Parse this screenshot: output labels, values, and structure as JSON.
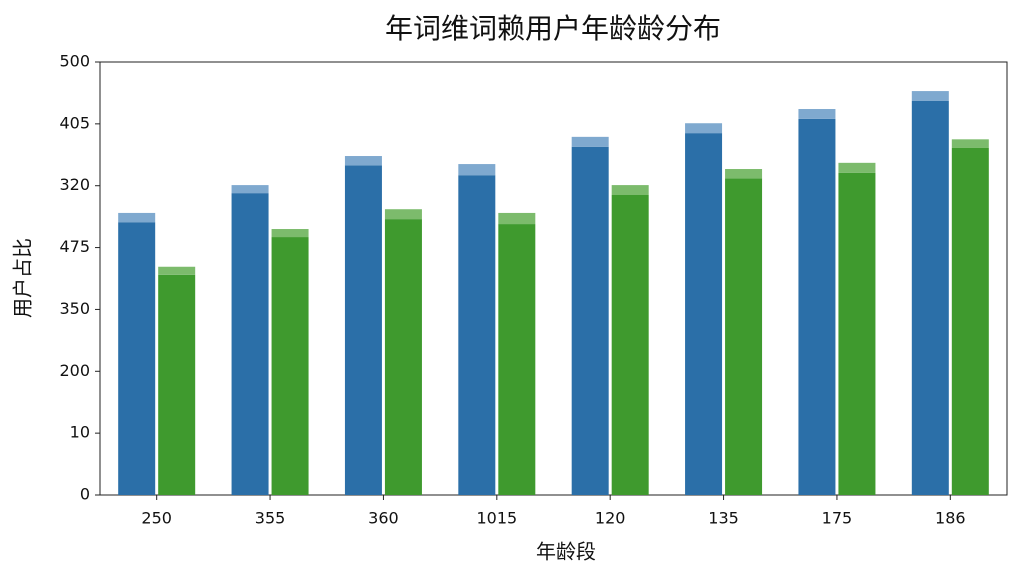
{
  "chart_data": {
    "type": "bar",
    "title": "年词维词赖用户年龄龄分布",
    "x_label": "年龄段",
    "y_label": "用户占比",
    "categories": [
      "250",
      "355",
      "360",
      "1015",
      "120",
      "135",
      "175",
      "186"
    ],
    "series": [
      {
        "color": "#2b6fa8",
        "values": [
          4.41,
          4.88,
          5.33,
          5.17,
          5.63,
          5.85,
          6.08,
          6.37
        ],
        "side": 0
      },
      {
        "color": "#7fa9cf",
        "values": [
          0.15,
          0.13,
          0.15,
          0.18,
          0.16,
          0.16,
          0.16,
          0.16
        ],
        "side": 0,
        "stack_on": 0
      },
      {
        "color": "#3f9a2e",
        "values": [
          3.56,
          4.17,
          4.46,
          4.38,
          4.85,
          5.12,
          5.21,
          5.61
        ],
        "side": 1
      },
      {
        "color": "#7cbb6c",
        "values": [
          0.13,
          0.13,
          0.16,
          0.18,
          0.16,
          0.15,
          0.16,
          0.14
        ],
        "side": 1,
        "stack_on": 2
      }
    ],
    "ylim": [
      0,
      7
    ],
    "yticks": [
      {
        "value": 0,
        "label": "0"
      },
      {
        "value": 1,
        "label": "10"
      },
      {
        "value": 2,
        "label": "200"
      },
      {
        "value": 3,
        "label": "350"
      },
      {
        "value": 4,
        "label": "475"
      },
      {
        "value": 5,
        "label": "320"
      },
      {
        "value": 6,
        "label": "405"
      },
      {
        "value": 7,
        "label": "500"
      }
    ],
    "grid": false
  }
}
